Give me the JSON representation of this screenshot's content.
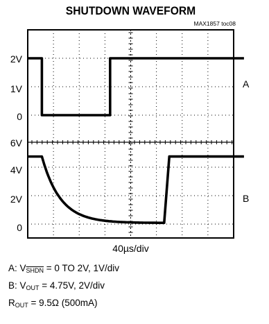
{
  "title": "SHUTDOWN WAVEFORM",
  "part_number": "MAX1857 toc08",
  "channel_a": {
    "label": "A",
    "y_ticks": [
      "2V",
      "1V",
      "0"
    ]
  },
  "channel_b": {
    "label": "B",
    "y_ticks": [
      "6V",
      "4V",
      "2V",
      "0"
    ]
  },
  "timebase": "40µs/div",
  "notes": {
    "a_prefix": "A: V",
    "a_sub": "SHDN",
    "a_suffix": " = 0 TO 2V, 1V/div",
    "b_prefix": "B: V",
    "b_sub": "OUT",
    "b_suffix": " = 4.75V, 2V/div",
    "r_prefix": "R",
    "r_sub": "OUT",
    "r_suffix": " = 9.5Ω (500mA)"
  },
  "chart_data": {
    "type": "line",
    "x_unit": "div",
    "x_per_div": "40µs",
    "series": [
      {
        "name": "A",
        "unit": "V",
        "x": [
          0,
          0.55,
          0.55,
          3.2,
          3.2,
          8.4
        ],
        "values": [
          2,
          2,
          0,
          0,
          2,
          2
        ]
      },
      {
        "name": "B",
        "unit": "V",
        "x": [
          0,
          0.55,
          0.8,
          1.2,
          1.6,
          2.0,
          2.4,
          2.8,
          3.2,
          3.6,
          4.0,
          4.4,
          4.9,
          5.3,
          5.5,
          8.4
        ],
        "values": [
          4.75,
          4.75,
          3.6,
          2.5,
          1.7,
          1.15,
          0.75,
          0.5,
          0.33,
          0.22,
          0.15,
          0.1,
          0.08,
          0.08,
          4.75,
          4.75
        ]
      }
    ]
  }
}
